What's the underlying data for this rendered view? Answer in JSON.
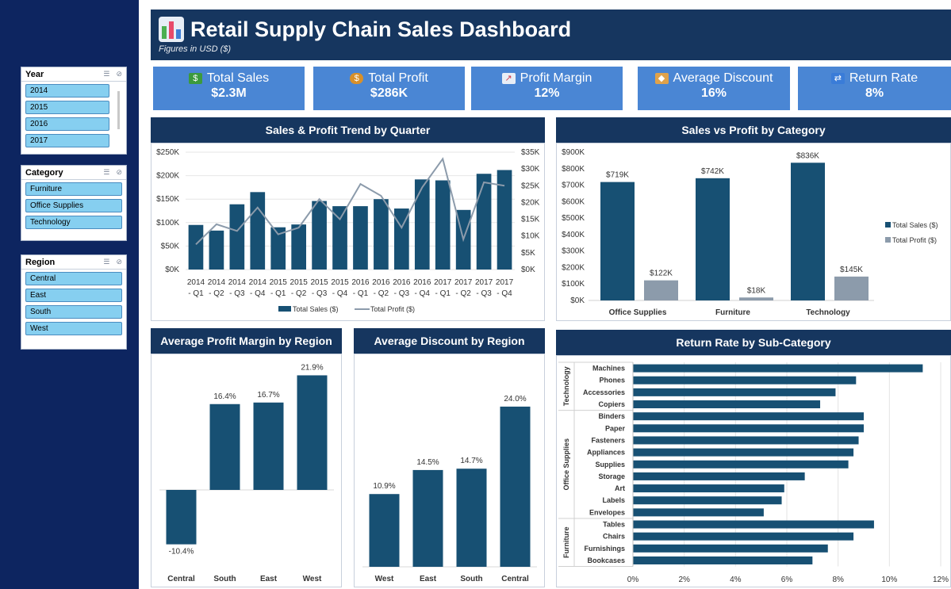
{
  "header": {
    "title": "Retail Supply Chain Sales Dashboard",
    "subtitle": "Figures in USD ($)"
  },
  "slicers": {
    "year": {
      "title": "Year",
      "items": [
        "2014",
        "2015",
        "2016",
        "2017"
      ]
    },
    "category": {
      "title": "Category",
      "items": [
        "Furniture",
        "Office Supplies",
        "Technology"
      ]
    },
    "region": {
      "title": "Region",
      "items": [
        "Central",
        "East",
        "South",
        "West"
      ]
    }
  },
  "kpis": [
    {
      "label": "Total Sales",
      "value": "$2.3M",
      "icon": "money-icon"
    },
    {
      "label": "Total Profit",
      "value": "$286K",
      "icon": "money-bag-icon"
    },
    {
      "label": "Profit Margin",
      "value": "12%",
      "icon": "chart-up-icon"
    },
    {
      "label": "Average Discount",
      "value": "16%",
      "icon": "tag-icon"
    },
    {
      "label": "Return Rate",
      "value": "8%",
      "icon": "repeat-icon"
    }
  ],
  "colors": {
    "navy": "#16365f",
    "bar": "#175073",
    "gray": "#8c9bab",
    "kpi": "#4a86d4",
    "leftbar": "#0d2560",
    "slicer_item": "#86cff0"
  },
  "chart_data": [
    {
      "type": "bar",
      "title": "Sales & Profit Trend by Quarter",
      "categories": [
        "2014 - Q1",
        "2014 - Q2",
        "2014 - Q3",
        "2014 - Q4",
        "2015 - Q1",
        "2015 - Q2",
        "2015 - Q3",
        "2015 - Q4",
        "2016 - Q1",
        "2016 - Q2",
        "2016 - Q3",
        "2016 - Q4",
        "2017 - Q1",
        "2017 - Q2",
        "2017 - Q3",
        "2017 - Q4"
      ],
      "series": [
        {
          "name": "Total Sales ($)",
          "chart": "bar",
          "axis": "left",
          "values": [
            95000,
            83000,
            139000,
            165000,
            90000,
            96000,
            146000,
            135000,
            135000,
            150000,
            130000,
            192000,
            190000,
            127000,
            204000,
            212000
          ]
        },
        {
          "name": "Total Profit ($)",
          "chart": "line",
          "axis": "right",
          "values": [
            7500,
            13500,
            11500,
            18500,
            10500,
            12500,
            21000,
            15000,
            25500,
            22000,
            12500,
            24500,
            33000,
            9000,
            26000,
            25000
          ]
        }
      ],
      "y_left": {
        "ticks": [
          "$0K",
          "$50K",
          "$100K",
          "$150K",
          "$200K",
          "$250K"
        ],
        "lim": [
          0,
          250000
        ]
      },
      "y_right": {
        "ticks": [
          "$0K",
          "$5K",
          "$10K",
          "$15K",
          "$20K",
          "$25K",
          "$30K",
          "$35K"
        ],
        "lim": [
          0,
          35000
        ]
      },
      "legend": "bottom"
    },
    {
      "type": "bar",
      "title": "Sales vs Profit by Category",
      "categories": [
        "Office Supplies",
        "Furniture",
        "Technology"
      ],
      "series": [
        {
          "name": "Total Sales ($)",
          "values": [
            719000,
            742000,
            836000
          ],
          "labels": [
            "$719K",
            "$742K",
            "$836K"
          ]
        },
        {
          "name": "Total Profit ($)",
          "values": [
            122000,
            18000,
            145000
          ],
          "labels": [
            "$122K",
            "$18K",
            "$145K"
          ]
        }
      ],
      "y_ticks": [
        "$0K",
        "$100K",
        "$200K",
        "$300K",
        "$400K",
        "$500K",
        "$600K",
        "$700K",
        "$800K",
        "$900K"
      ],
      "ylim": [
        0,
        900000
      ],
      "legend": "right"
    },
    {
      "type": "bar",
      "title": "Average Profit Margin by Region",
      "categories": [
        "Central",
        "South",
        "East",
        "West"
      ],
      "values": [
        -10.4,
        16.4,
        16.7,
        21.9
      ],
      "labels": [
        "-10.4%",
        "16.4%",
        "16.7%",
        "21.9%"
      ]
    },
    {
      "type": "bar",
      "title": "Average Discount by Region",
      "categories": [
        "West",
        "East",
        "South",
        "Central"
      ],
      "values": [
        10.9,
        14.5,
        14.7,
        24.0
      ],
      "labels": [
        "10.9%",
        "14.5%",
        "14.7%",
        "24.0%"
      ]
    },
    {
      "type": "bar",
      "orientation": "horizontal",
      "title": "Return Rate by Sub-Category",
      "groups": [
        {
          "name": "Technology",
          "items": [
            {
              "label": "Machines",
              "value": 11.3
            },
            {
              "label": "Phones",
              "value": 8.7
            },
            {
              "label": "Accessories",
              "value": 7.9
            },
            {
              "label": "Copiers",
              "value": 7.3
            }
          ]
        },
        {
          "name": "Office Supplies",
          "items": [
            {
              "label": "Binders",
              "value": 9.0
            },
            {
              "label": "Paper",
              "value": 9.0
            },
            {
              "label": "Fasteners",
              "value": 8.8
            },
            {
              "label": "Appliances",
              "value": 8.6
            },
            {
              "label": "Supplies",
              "value": 8.4
            },
            {
              "label": "Storage",
              "value": 6.7
            },
            {
              "label": "Art",
              "value": 5.9
            },
            {
              "label": "Labels",
              "value": 5.8
            },
            {
              "label": "Envelopes",
              "value": 5.1
            }
          ]
        },
        {
          "name": "Furniture",
          "items": [
            {
              "label": "Tables",
              "value": 9.4
            },
            {
              "label": "Chairs",
              "value": 8.6
            },
            {
              "label": "Furnishings",
              "value": 7.6
            },
            {
              "label": "Bookcases",
              "value": 7.0
            }
          ]
        }
      ],
      "x_ticks": [
        "0%",
        "2%",
        "4%",
        "6%",
        "8%",
        "10%",
        "12%"
      ],
      "xlim": [
        0,
        12
      ]
    }
  ]
}
